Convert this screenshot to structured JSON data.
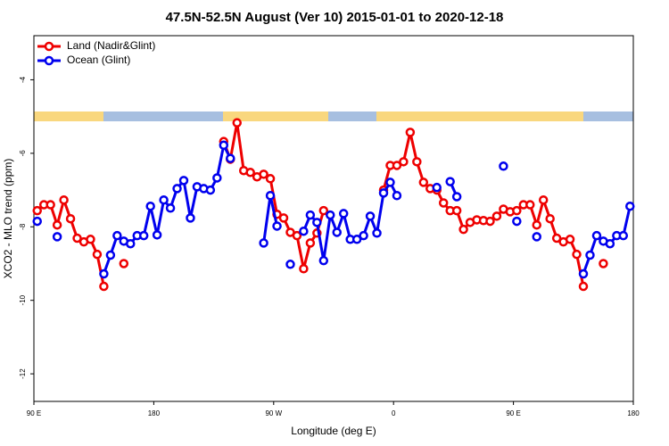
{
  "chart_data": {
    "type": "line",
    "title": "47.5N-52.5N August (Ver 10)   2015-01-01 to 2020-12-18",
    "x_label": "Longitude (deg E)",
    "y_label": "XCO2 - MLO trend (ppm)",
    "x": [
      92.5,
      97.5,
      102.5,
      107.5,
      112.5,
      117.5,
      122.5,
      127.5,
      132.5,
      137.5,
      142.5,
      147.5,
      152.5,
      157.5,
      162.5,
      167.5,
      172.5,
      177.5,
      182.5,
      187.5,
      192.5,
      197.5,
      202.5,
      207.5,
      212.5,
      217.5,
      222.5,
      227.5,
      232.5,
      237.5,
      242.5,
      247.5,
      252.5,
      257.5,
      262.5,
      267.5,
      272.5,
      277.5,
      282.5,
      287.5,
      292.5,
      297.5,
      302.5,
      307.5,
      312.5,
      317.5,
      322.5,
      327.5,
      332.5,
      337.5,
      342.5,
      347.5,
      352.5,
      357.5,
      362.5,
      367.5,
      372.5,
      377.5,
      382.5,
      387.5,
      392.5,
      397.5,
      402.5,
      407.5,
      412.5,
      417.5,
      422.5,
      427.5,
      432.5,
      437.5,
      442.5,
      447.5,
      452.5,
      457.5,
      462.5,
      467.5,
      472.5,
      477.5,
      482.5,
      487.5,
      492.5,
      497.5,
      502.5,
      507.5,
      512.5,
      517.5,
      522.5,
      527.5,
      532.5,
      537.5
    ],
    "series": [
      {
        "name": "Land (Nadir&Glint)",
        "color": "#ee0000",
        "values": [
          -7.56,
          -7.4,
          -7.4,
          -7.95,
          -7.27,
          -7.78,
          -8.31,
          -8.41,
          -8.34,
          -8.75,
          -9.62,
          null,
          null,
          -9.0,
          null,
          null,
          null,
          null,
          null,
          null,
          null,
          null,
          null,
          null,
          null,
          null,
          null,
          null,
          -5.68,
          -6.16,
          -5.17,
          -6.47,
          -6.52,
          -6.64,
          -6.57,
          -6.69,
          -7.66,
          -7.76,
          -8.15,
          -8.24,
          -9.14,
          -8.44,
          -8.17,
          -7.56,
          null,
          null,
          null,
          null,
          null,
          null,
          null,
          null,
          -7.0,
          -6.33,
          -6.33,
          -6.23,
          -5.43,
          -6.23,
          -6.79,
          -6.96,
          -7.0,
          -7.35,
          -7.56,
          -7.56,
          -8.07,
          -7.88,
          -7.81,
          -7.83,
          -7.85,
          -7.71,
          -7.52,
          -7.59,
          -7.56,
          -7.4,
          -7.4,
          -7.95,
          -7.27,
          -7.78,
          -8.31,
          -8.41,
          -8.34,
          -8.75,
          -9.62,
          null,
          null,
          -9.0,
          null,
          null,
          null,
          null
        ]
      },
      {
        "name": "Ocean (Glint)",
        "color": "#0000ee",
        "values": [
          -7.85,
          null,
          null,
          -8.27,
          null,
          null,
          null,
          null,
          null,
          null,
          -9.28,
          -8.77,
          -8.24,
          -8.39,
          -8.46,
          -8.24,
          -8.24,
          -7.44,
          -8.22,
          -7.27,
          -7.49,
          -6.96,
          -6.74,
          -7.76,
          -6.91,
          -6.96,
          -7.0,
          -6.67,
          -5.78,
          -6.14,
          null,
          null,
          null,
          null,
          -8.44,
          -7.15,
          -7.98,
          null,
          -9.02,
          null,
          -8.12,
          -7.68,
          -7.88,
          -8.92,
          -7.68,
          -8.15,
          -7.64,
          -8.34,
          -8.34,
          -8.24,
          -7.71,
          -8.17,
          -7.08,
          -6.79,
          -7.15,
          null,
          null,
          null,
          null,
          null,
          -6.93,
          null,
          -6.77,
          -7.18,
          null,
          null,
          null,
          null,
          null,
          null,
          -6.35,
          null,
          -7.85,
          null,
          null,
          -8.27,
          null,
          null,
          null,
          null,
          null,
          null,
          -9.28,
          -8.77,
          -8.24,
          -8.39,
          -8.46,
          -8.24,
          -8.24,
          -7.44
        ]
      }
    ],
    "xlim": [
      90,
      540
    ],
    "xticks": [
      {
        "value": 90,
        "label": "90 E"
      },
      180,
      {
        "value": 270,
        "label": "90 W"
      },
      {
        "value": 360,
        "label": "0"
      },
      {
        "value": 450,
        "label": "90 E"
      },
      180
    ],
    "ylim": [
      -12.75,
      -2.8
    ],
    "yticks": [
      -12,
      -10,
      -8,
      -6,
      -4
    ],
    "legend": "upper left"
  }
}
